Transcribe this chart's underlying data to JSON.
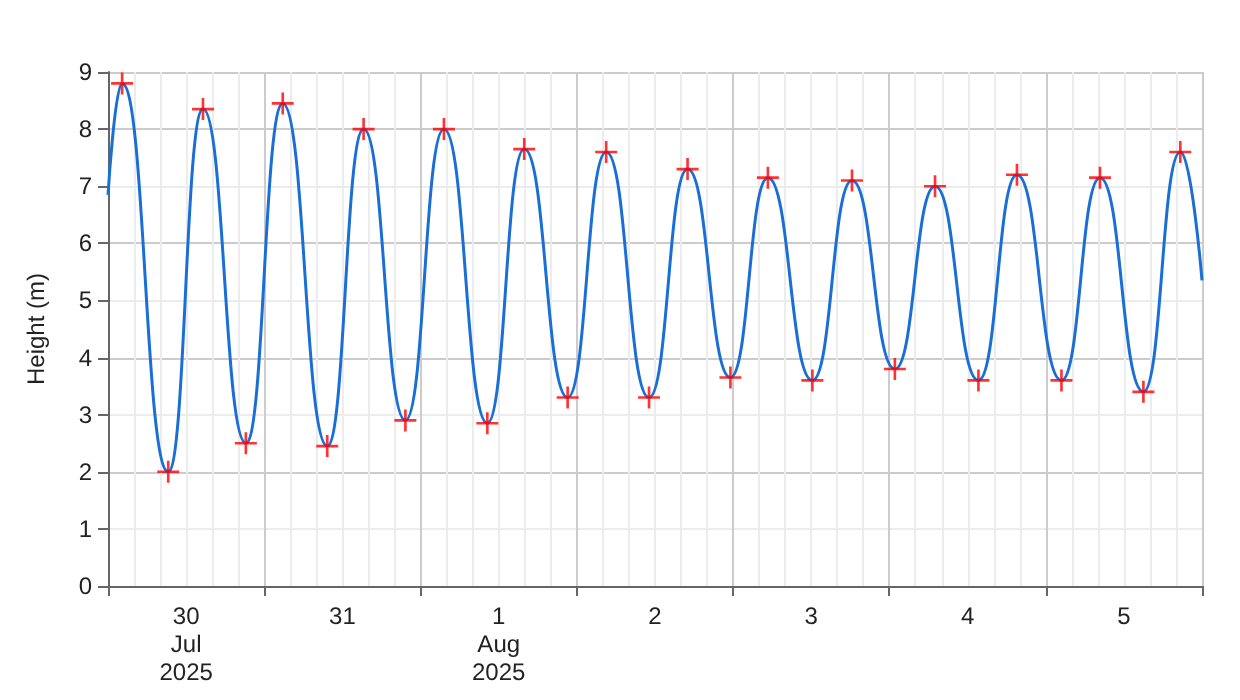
{
  "chart_data": {
    "type": "line",
    "ylabel": "Height (m)",
    "xlim": [
      "2025-07-30T00:00",
      "2025-08-06T00:00"
    ],
    "xticks": [
      {
        "value": "2025-07-30T00:00",
        "label": null
      },
      {
        "value": "2025-07-30T12:00",
        "label": "30\nJul\n2025"
      },
      {
        "value": "2025-07-31T00:00",
        "label": null
      },
      {
        "value": "2025-07-31T12:00",
        "label": "31"
      },
      {
        "value": "2025-08-01T00:00",
        "label": null
      },
      {
        "value": "2025-08-01T12:00",
        "label": "1\nAug\n2025"
      },
      {
        "value": "2025-08-02T00:00",
        "label": null
      },
      {
        "value": "2025-08-02T12:00",
        "label": "2"
      },
      {
        "value": "2025-08-03T00:00",
        "label": null
      },
      {
        "value": "2025-08-03T12:00",
        "label": "3"
      },
      {
        "value": "2025-08-04T00:00",
        "label": null
      },
      {
        "value": "2025-08-04T12:00",
        "label": "4"
      },
      {
        "value": "2025-08-05T00:00",
        "label": null
      },
      {
        "value": "2025-08-05T12:00",
        "label": "5"
      },
      {
        "value": "2025-08-06T00:00",
        "label": null
      }
    ],
    "ylim": [
      0,
      9
    ],
    "yticks": [
      0,
      1,
      2,
      3,
      4,
      5,
      6,
      7,
      8,
      9
    ],
    "grid": true,
    "series": [
      {
        "color": "#1a6fd6",
        "marker": "none",
        "x": [
          "2025-07-30T00:00",
          "2025-07-30T02:10",
          "2025-07-30T09:15",
          "2025-07-30T14:35",
          "2025-07-30T21:10",
          "2025-07-31T02:50",
          "2025-07-31T09:40",
          "2025-07-31T15:15",
          "2025-07-31T21:40",
          "2025-08-01T03:35",
          "2025-08-01T10:15",
          "2025-08-01T15:55",
          "2025-08-01T22:35",
          "2025-08-02T04:30",
          "2025-08-02T11:05",
          "2025-08-02T17:00",
          "2025-08-02T23:35",
          "2025-08-03T05:20",
          "2025-08-03T12:10",
          "2025-08-03T18:15",
          "2025-08-04T00:50",
          "2025-08-04T07:00",
          "2025-08-04T13:40",
          "2025-08-04T19:35",
          "2025-08-05T02:25",
          "2025-08-05T08:20",
          "2025-08-05T15:00",
          "2025-08-05T20:40",
          "2025-08-06T00:00"
        ],
        "values": [
          6.85,
          8.8,
          2.0,
          8.35,
          2.5,
          8.45,
          2.45,
          8.0,
          2.9,
          8.0,
          2.85,
          7.65,
          3.3,
          7.6,
          3.3,
          7.3,
          3.65,
          7.15,
          3.6,
          7.1,
          3.8,
          7.0,
          3.6,
          7.2,
          3.6,
          7.15,
          3.4,
          7.6,
          5.35
        ]
      },
      {
        "type": "scatter",
        "color": "#ff0000",
        "marker": "cross",
        "x": [
          "2025-07-30T02:10",
          "2025-07-30T09:15",
          "2025-07-30T14:35",
          "2025-07-30T21:10",
          "2025-07-31T02:50",
          "2025-07-31T09:40",
          "2025-07-31T15:15",
          "2025-07-31T21:40",
          "2025-08-01T03:35",
          "2025-08-01T10:15",
          "2025-08-01T15:55",
          "2025-08-01T22:35",
          "2025-08-02T04:30",
          "2025-08-02T11:05",
          "2025-08-02T17:00",
          "2025-08-02T23:35",
          "2025-08-03T05:20",
          "2025-08-03T12:10",
          "2025-08-03T18:15",
          "2025-08-04T00:50",
          "2025-08-04T07:00",
          "2025-08-04T13:40",
          "2025-08-04T19:35",
          "2025-08-05T02:25",
          "2025-08-05T08:20",
          "2025-08-05T15:00",
          "2025-08-05T20:40"
        ],
        "values": [
          8.8,
          2.0,
          8.35,
          2.5,
          8.45,
          2.45,
          8.0,
          2.9,
          8.0,
          2.85,
          7.65,
          3.3,
          7.6,
          3.3,
          7.3,
          3.65,
          7.15,
          3.6,
          7.1,
          3.8,
          7.0,
          3.6,
          7.2,
          3.6,
          7.15,
          3.4,
          7.6
        ]
      }
    ]
  }
}
